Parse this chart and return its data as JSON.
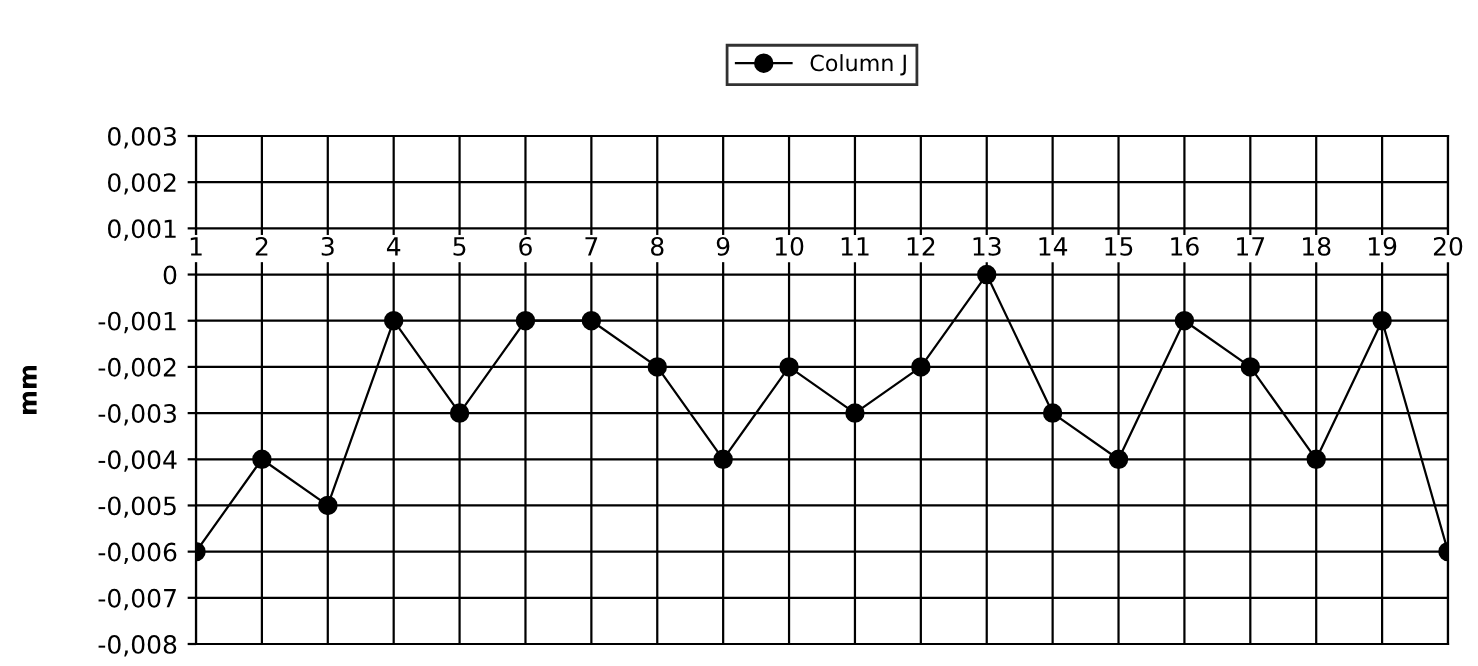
{
  "chart_data": {
    "type": "line",
    "ylabel": "mm",
    "x": [
      1,
      2,
      3,
      4,
      5,
      6,
      7,
      8,
      9,
      10,
      11,
      12,
      13,
      14,
      15,
      16,
      17,
      18,
      19,
      20
    ],
    "series": [
      {
        "name": "Column J",
        "color": "#000000",
        "values": [
          -0.006,
          -0.004,
          -0.005,
          -0.001,
          -0.003,
          -0.001,
          -0.001,
          -0.002,
          -0.004,
          -0.002,
          -0.003,
          -0.002,
          0,
          -0.003,
          -0.004,
          -0.001,
          -0.002,
          -0.004,
          -0.001,
          -0.006
        ]
      }
    ],
    "xlim": [
      1,
      20
    ],
    "xticks": [
      1,
      2,
      3,
      4,
      5,
      6,
      7,
      8,
      9,
      10,
      11,
      12,
      13,
      14,
      15,
      16,
      17,
      18,
      19,
      20
    ],
    "ylim": [
      -0.008,
      0.003
    ],
    "yticks": [
      {
        "value": -0.008,
        "label": "-0,008"
      },
      {
        "value": -0.007,
        "label": "-0,007"
      },
      {
        "value": -0.006,
        "label": "-0,006"
      },
      {
        "value": -0.005,
        "label": "-0,005"
      },
      {
        "value": -0.004,
        "label": "-0,004"
      },
      {
        "value": -0.003,
        "label": "-0,003"
      },
      {
        "value": -0.002,
        "label": "-0,002"
      },
      {
        "value": -0.001,
        "label": "-0,001"
      },
      {
        "value": 0,
        "label": "0"
      },
      {
        "value": 0.001,
        "label": "0,001"
      },
      {
        "value": 0.002,
        "label": "0,002"
      },
      {
        "value": 0.003,
        "label": "0,003"
      }
    ],
    "grid": true,
    "legend": "top",
    "marker": "circle",
    "line_style": "solid"
  }
}
